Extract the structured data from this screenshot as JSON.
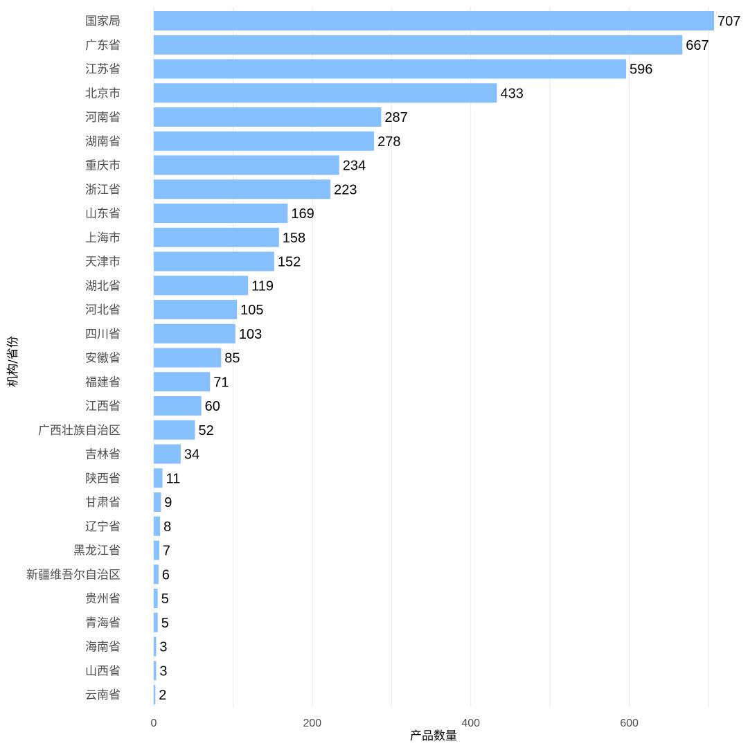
{
  "chart_data": {
    "type": "bar",
    "orientation": "horizontal",
    "categories": [
      "国家局",
      "广东省",
      "江苏省",
      "北京市",
      "河南省",
      "湖南省",
      "重庆市",
      "浙江省",
      "山东省",
      "上海市",
      "天津市",
      "湖北省",
      "河北省",
      "四川省",
      "安徽省",
      "福建省",
      "江西省",
      "广西壮族自治区",
      "吉林省",
      "陕西省",
      "甘肃省",
      "辽宁省",
      "黑龙江省",
      "新疆维吾尔自治区",
      "贵州省",
      "青海省",
      "海南省",
      "山西省",
      "云南省"
    ],
    "values": [
      707,
      667,
      596,
      433,
      287,
      278,
      234,
      223,
      169,
      158,
      152,
      119,
      105,
      103,
      85,
      71,
      60,
      52,
      34,
      11,
      9,
      8,
      7,
      6,
      5,
      5,
      3,
      3,
      2
    ],
    "xlabel": "产品数量",
    "ylabel": "机构/省份",
    "xlim": [
      0,
      707
    ],
    "xticks": [
      0,
      200,
      400,
      600
    ],
    "grid": true,
    "bar_color": "#87C0FF"
  }
}
